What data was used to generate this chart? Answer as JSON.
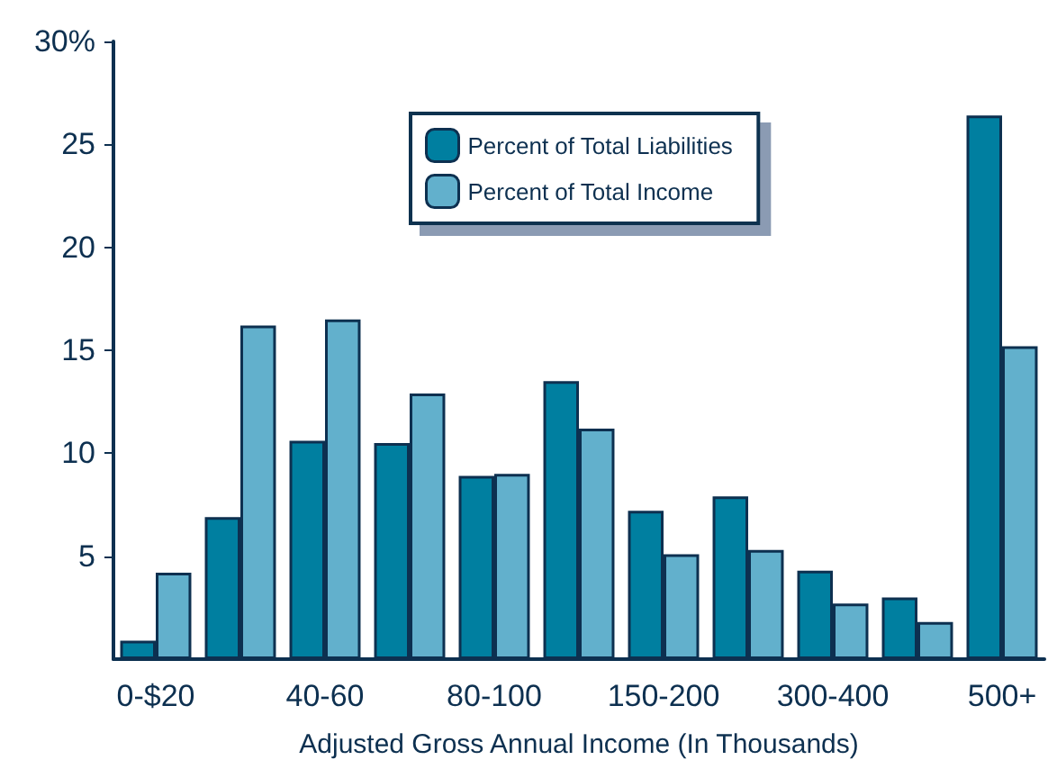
{
  "chart_data": {
    "type": "bar",
    "xlabel": "Adjusted Gross Annual Income (In Thousands)",
    "categories": [
      "0-$20",
      null,
      "40-60",
      null,
      "80-100",
      null,
      "150-200",
      null,
      "300-400",
      null,
      "500+"
    ],
    "series": [
      {
        "name": "Percent of Total Liabilities",
        "color": "#007fa0",
        "values": [
          0.9,
          6.9,
          10.6,
          10.5,
          8.9,
          13.5,
          7.2,
          7.9,
          4.3,
          3.0,
          26.4
        ]
      },
      {
        "name": "Percent of Total Income",
        "color": "#62b0cc",
        "values": [
          4.2,
          16.2,
          16.5,
          12.9,
          9.0,
          11.2,
          5.1,
          5.3,
          2.7,
          1.8,
          15.2
        ]
      }
    ],
    "ylim": [
      0,
      30
    ],
    "yticks": [
      {
        "value": 5,
        "label": "5"
      },
      {
        "value": 10,
        "label": "10"
      },
      {
        "value": 15,
        "label": "15"
      },
      {
        "value": 20,
        "label": "20"
      },
      {
        "value": 25,
        "label": "25"
      },
      {
        "value": 30,
        "label": "30%"
      }
    ],
    "grid": false,
    "legend": "top"
  }
}
